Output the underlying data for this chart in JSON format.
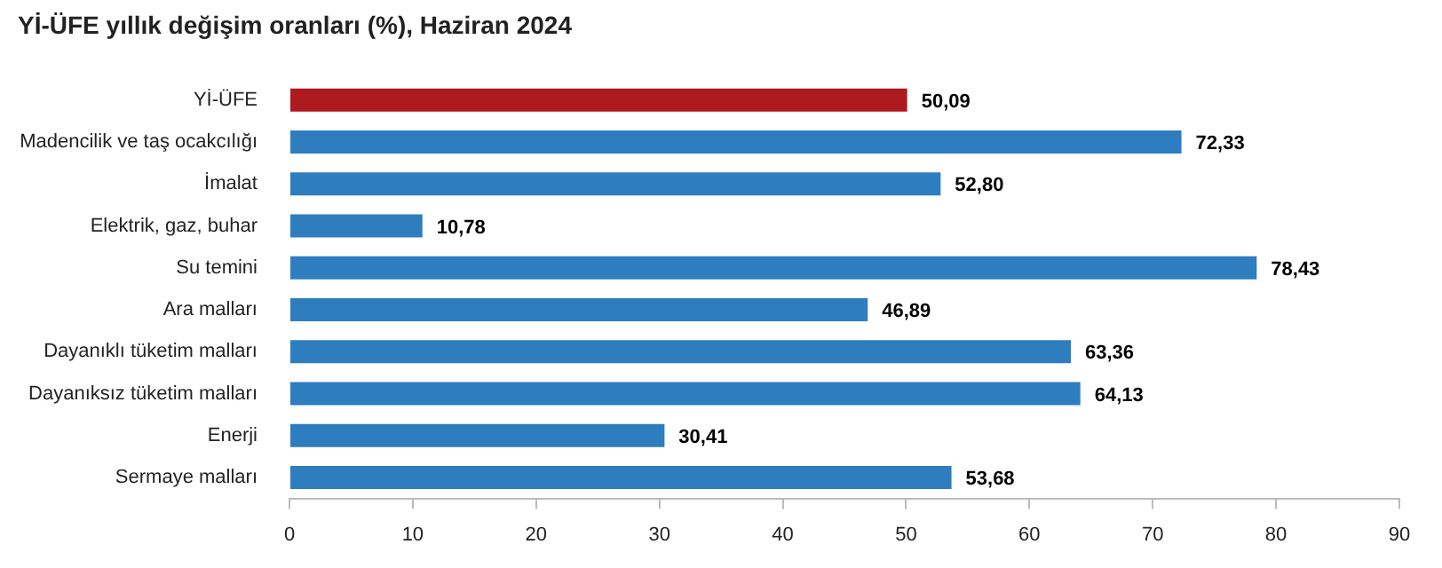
{
  "chart_data": {
    "type": "bar",
    "orientation": "horizontal",
    "title": "Yİ-ÜFE yıllık değişim oranları (%), Haziran 2024",
    "categories": [
      "Yİ-ÜFE",
      "Madencilik ve taş ocakcılığı",
      "İmalat",
      "Elektrik, gaz, buhar",
      "Su temini",
      "Ara malları",
      "Dayanıklı tüketim malları",
      "Dayanıksız tüketim malları",
      "Enerji",
      "Sermaye malları"
    ],
    "values": [
      50.09,
      72.33,
      52.8,
      10.78,
      78.43,
      46.89,
      63.36,
      64.13,
      30.41,
      53.68
    ],
    "value_labels": [
      "50,09",
      "72,33",
      "52,80",
      "10,78",
      "78,43",
      "46,89",
      "63,36",
      "64,13",
      "30,41",
      "53,68"
    ],
    "colors": [
      "#ae1b1f",
      "#2e7dbf",
      "#2e7dbf",
      "#2e7dbf",
      "#2e7dbf",
      "#2e7dbf",
      "#2e7dbf",
      "#2e7dbf",
      "#2e7dbf",
      "#2e7dbf"
    ],
    "xlim": [
      0,
      90
    ],
    "xticks": [
      0,
      10,
      20,
      30,
      40,
      50,
      60,
      70,
      80,
      90
    ],
    "grid": false,
    "legend": false
  }
}
